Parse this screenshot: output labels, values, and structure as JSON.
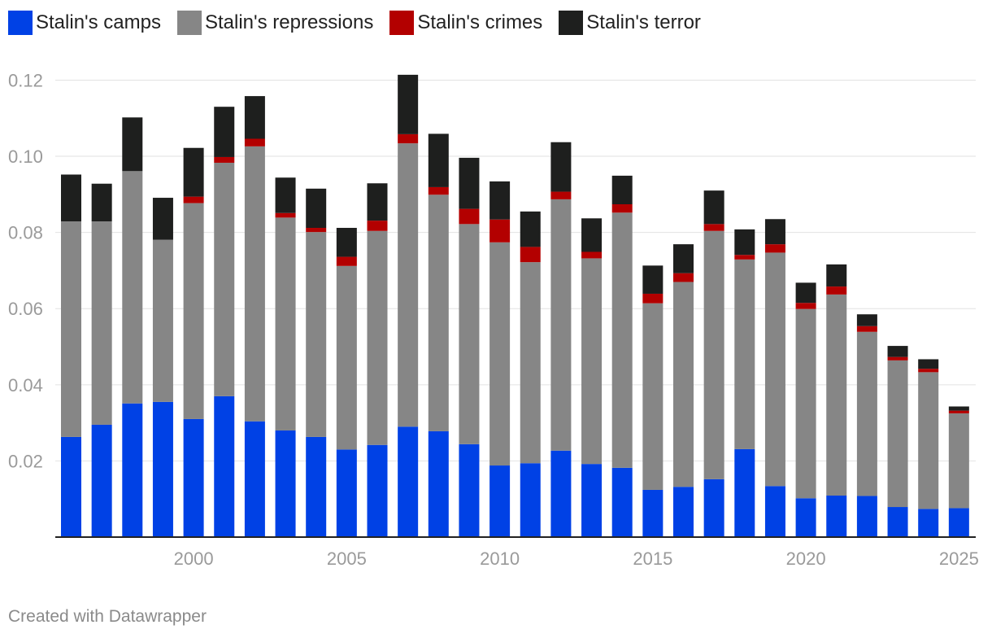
{
  "chart_data": {
    "type": "bar",
    "stacked": true,
    "x": [
      1996,
      1997,
      1998,
      1999,
      2000,
      2001,
      2002,
      2003,
      2004,
      2005,
      2006,
      2007,
      2008,
      2009,
      2010,
      2011,
      2012,
      2013,
      2014,
      2015,
      2016,
      2017,
      2018,
      2019,
      2020,
      2021,
      2022,
      2023,
      2024,
      2025
    ],
    "series": [
      {
        "name": "Stalin's camps",
        "color": "#0041e5",
        "values": [
          0.0263,
          0.0295,
          0.0351,
          0.0355,
          0.031,
          0.037,
          0.0304,
          0.028,
          0.0263,
          0.023,
          0.0242,
          0.029,
          0.0278,
          0.0244,
          0.0188,
          0.0194,
          0.0227,
          0.0192,
          0.0182,
          0.0124,
          0.0132,
          0.0152,
          0.0231,
          0.0134,
          0.0102,
          0.0109,
          0.0108,
          0.0079,
          0.0074,
          0.0076
        ]
      },
      {
        "name": "Stalin's repressions",
        "color": "#868686",
        "values": [
          0.0566,
          0.0534,
          0.061,
          0.0426,
          0.0567,
          0.0613,
          0.0722,
          0.0559,
          0.0538,
          0.0482,
          0.0562,
          0.0744,
          0.0621,
          0.0578,
          0.0586,
          0.0528,
          0.066,
          0.054,
          0.067,
          0.049,
          0.0538,
          0.0652,
          0.0498,
          0.0613,
          0.0497,
          0.0528,
          0.0431,
          0.0385,
          0.0359,
          0.0249
        ]
      },
      {
        "name": "Stalin's crimes",
        "color": "#b30000",
        "values": [
          0.0,
          0.0,
          0.0,
          0.0,
          0.0017,
          0.0015,
          0.002,
          0.0012,
          0.0011,
          0.0024,
          0.0027,
          0.0024,
          0.002,
          0.004,
          0.006,
          0.004,
          0.002,
          0.0017,
          0.0022,
          0.0025,
          0.0023,
          0.0018,
          0.0012,
          0.0022,
          0.0016,
          0.0021,
          0.0015,
          0.0009,
          0.0009,
          0.0007
        ]
      },
      {
        "name": "Stalin's terror",
        "color": "#1e1f1e",
        "values": [
          0.0123,
          0.0099,
          0.0141,
          0.011,
          0.0128,
          0.0132,
          0.0112,
          0.0093,
          0.0103,
          0.0076,
          0.0098,
          0.0156,
          0.014,
          0.0134,
          0.01,
          0.0093,
          0.013,
          0.0088,
          0.0075,
          0.0074,
          0.0076,
          0.0088,
          0.0067,
          0.0066,
          0.0053,
          0.0058,
          0.0031,
          0.0029,
          0.0025,
          0.0011
        ]
      }
    ],
    "ylim": [
      0,
      0.128
    ],
    "yticks": [
      0.02,
      0.04,
      0.06,
      0.08,
      0.1,
      0.12
    ],
    "ytick_labels": [
      "0.02",
      "0.04",
      "0.06",
      "0.08",
      "0.10",
      "0.12"
    ],
    "xticks": [
      2000,
      2005,
      2010,
      2015,
      2020,
      2025
    ],
    "xtick_labels": [
      "2000",
      "2005",
      "2010",
      "2015",
      "2020",
      "2025"
    ],
    "title": "",
    "xlabel": "",
    "ylabel": "",
    "legend_position": "top-left",
    "grid": true
  },
  "footer": {
    "credit": "Created with Datawrapper"
  }
}
